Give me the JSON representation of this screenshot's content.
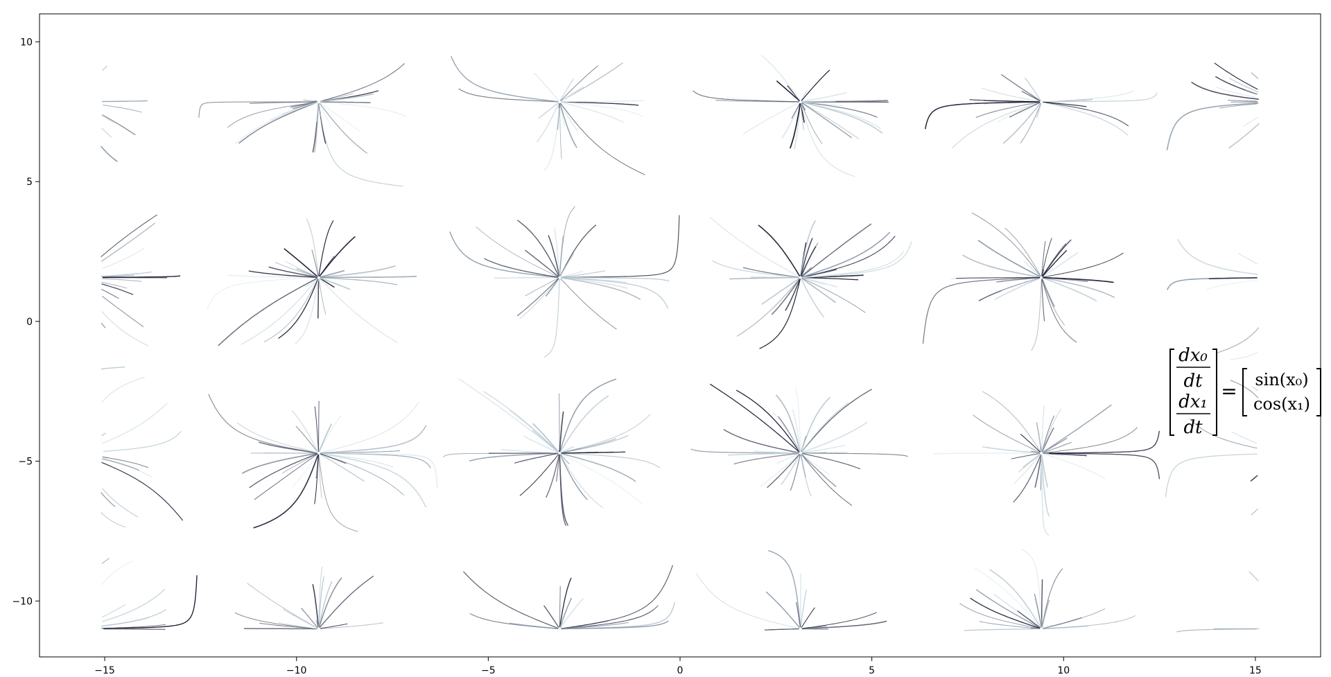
{
  "chart_data": {
    "type": "streamline",
    "title": "",
    "xlabel": "",
    "ylabel": "",
    "xlim": [
      -16.7,
      16.7
    ],
    "ylim": [
      -12,
      11
    ],
    "x_ticks": [
      -15,
      -10,
      -5,
      0,
      5,
      10,
      15
    ],
    "y_ticks": [
      -10,
      -5,
      0,
      5,
      10
    ],
    "grid": false,
    "legend": "none",
    "vector_field": {
      "dx0_dt": "sin(x0)",
      "dx1_dt": "cos(x1)"
    },
    "sink_nodes_x": [
      -9.42,
      -3.14,
      3.14,
      9.42
    ],
    "sink_nodes_y": [
      -10.99,
      -4.71,
      1.57,
      7.85
    ],
    "line_colors": [
      "#16162e",
      "#55556a",
      "#8898a6",
      "#b5c8d0",
      "#d6e4e8"
    ],
    "equation": {
      "lhs_top_num": "dx₀",
      "lhs_top_den": "dt",
      "lhs_bottom_num": "dx₁",
      "lhs_bottom_den": "dt",
      "equals": "=",
      "rhs_top": "sin(x₀)",
      "rhs_bottom": "cos(x₁)"
    }
  }
}
